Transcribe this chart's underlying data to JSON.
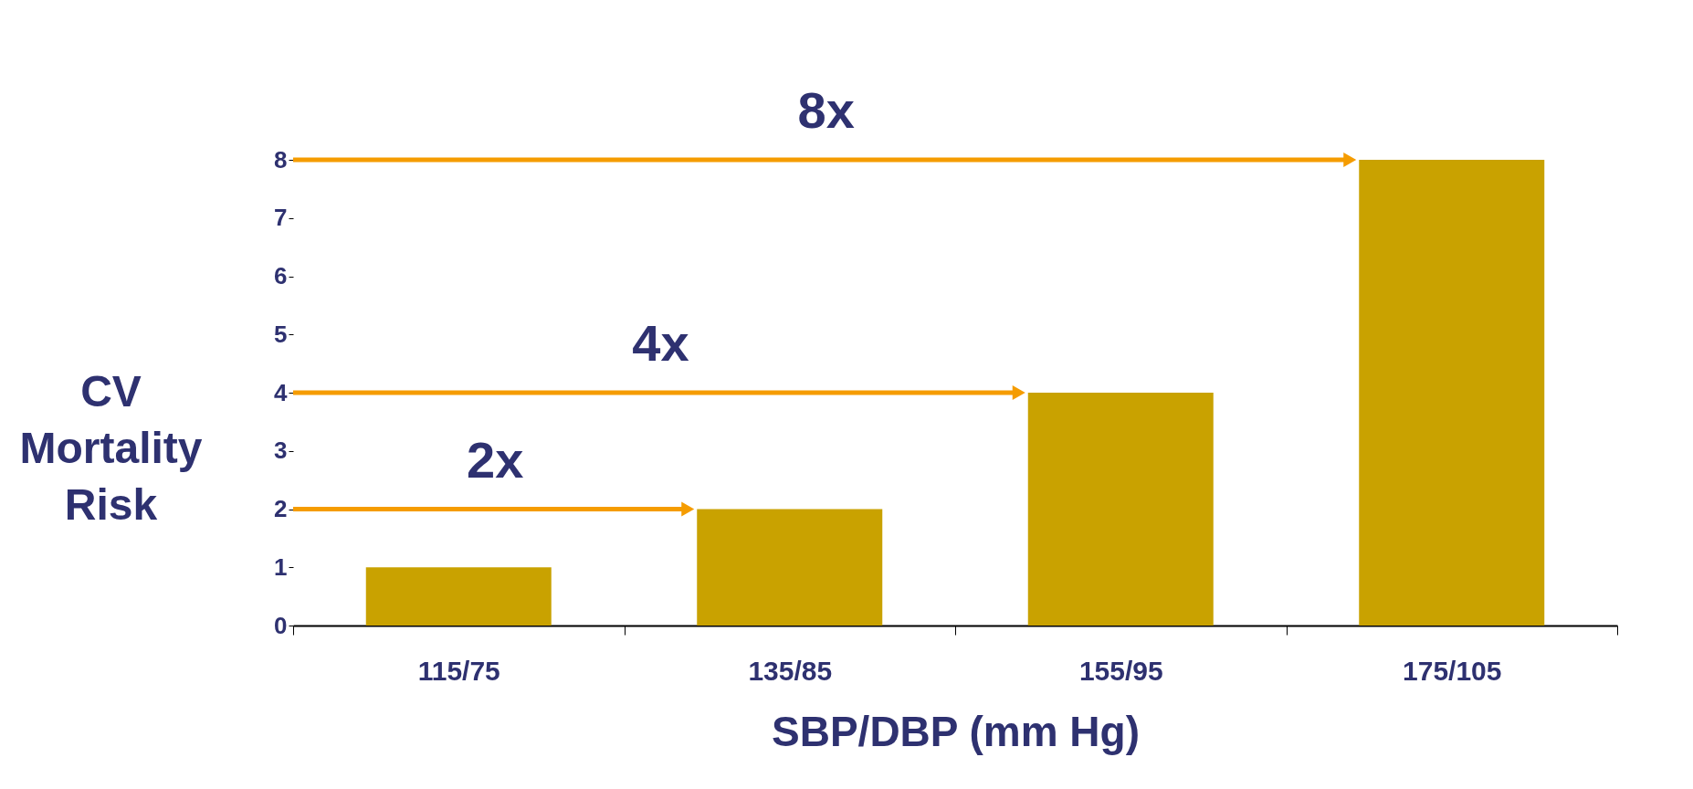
{
  "chart_data": {
    "type": "bar",
    "xlabel": "SBP/DBP (mm Hg)",
    "ylabel": "CV Mortality Risk",
    "categories": [
      "115/75",
      "135/85",
      "155/95",
      "175/105"
    ],
    "values": [
      1,
      2,
      4,
      8
    ],
    "color": "#c9a200",
    "ylim": [
      0,
      8
    ],
    "yticks": [
      0,
      1,
      2,
      3,
      4,
      5,
      6,
      7,
      8
    ],
    "grid": false,
    "ref_lines": [
      {
        "axis": "y",
        "value": 2,
        "label": "2x",
        "color": "#f59c00"
      },
      {
        "axis": "y",
        "value": 4,
        "label": "4x",
        "color": "#f59c00"
      },
      {
        "axis": "y",
        "value": 8,
        "label": "8x",
        "color": "#f59c00"
      }
    ]
  }
}
